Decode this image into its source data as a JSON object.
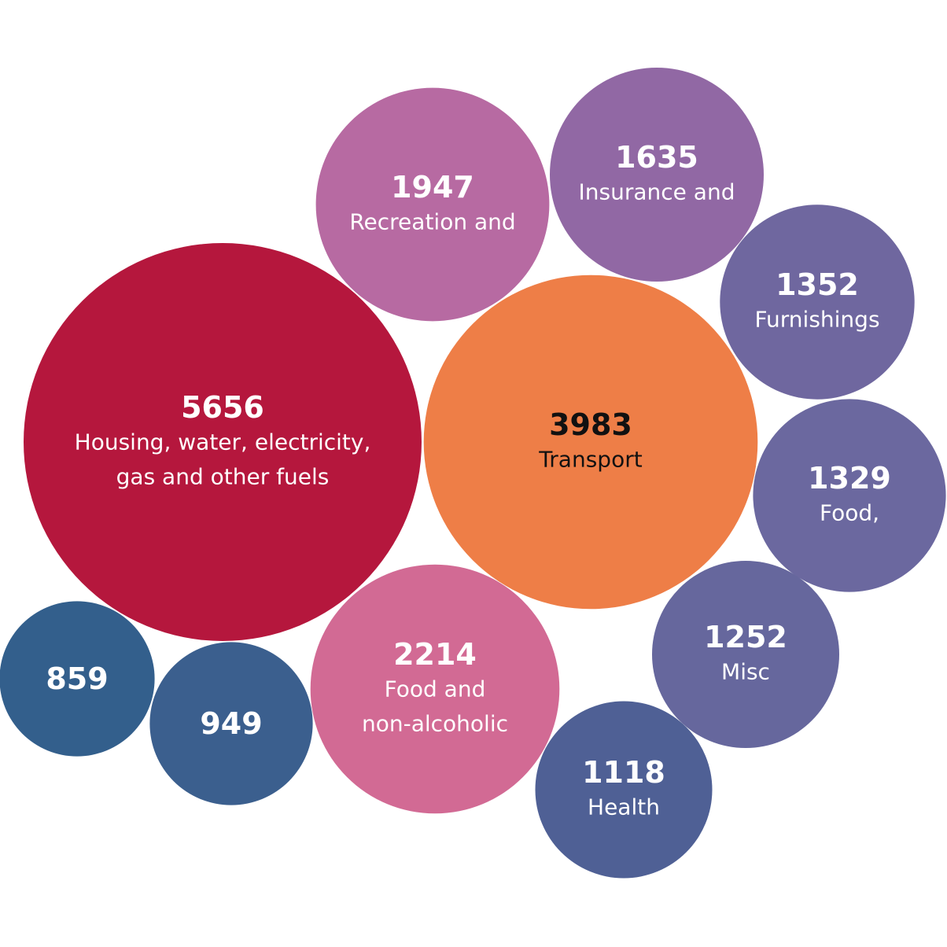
{
  "chart_data": {
    "type": "bubble",
    "title": "",
    "series": [
      {
        "value": 5656,
        "label": [
          "Housing, water, electricity,",
          "gas and other fuels"
        ],
        "color": "#B5173D",
        "text_color": "#FFFFFF"
      },
      {
        "value": 3983,
        "label": [
          "Transport"
        ],
        "color": "#EE7E47",
        "text_color": "#111111"
      },
      {
        "value": 2214,
        "label": [
          "Food and",
          "non-alcoholic"
        ],
        "color": "#D26A94",
        "text_color": "#FFFFFF"
      },
      {
        "value": 1947,
        "label": [
          "Recreation and"
        ],
        "color": "#B76AA2",
        "text_color": "#FFFFFF"
      },
      {
        "value": 1635,
        "label": [
          "Insurance and"
        ],
        "color": "#9168A4",
        "text_color": "#FFFFFF"
      },
      {
        "value": 1352,
        "label": [
          "Furnishings"
        ],
        "color": "#6F679F",
        "text_color": "#FFFFFF"
      },
      {
        "value": 1329,
        "label": [
          "Food,"
        ],
        "color": "#6B689F",
        "text_color": "#FFFFFF"
      },
      {
        "value": 1252,
        "label": [
          "Misc"
        ],
        "color": "#66679D",
        "text_color": "#FFFFFF"
      },
      {
        "value": 1118,
        "label": [
          "Health"
        ],
        "color": "#4F6095",
        "text_color": "#FFFFFF"
      },
      {
        "value": 949,
        "label": [],
        "color": "#3B5F8E",
        "text_color": "#FFFFFF"
      },
      {
        "value": 859,
        "label": [],
        "color": "#335F8C",
        "text_color": "#FFFFFF"
      }
    ]
  }
}
